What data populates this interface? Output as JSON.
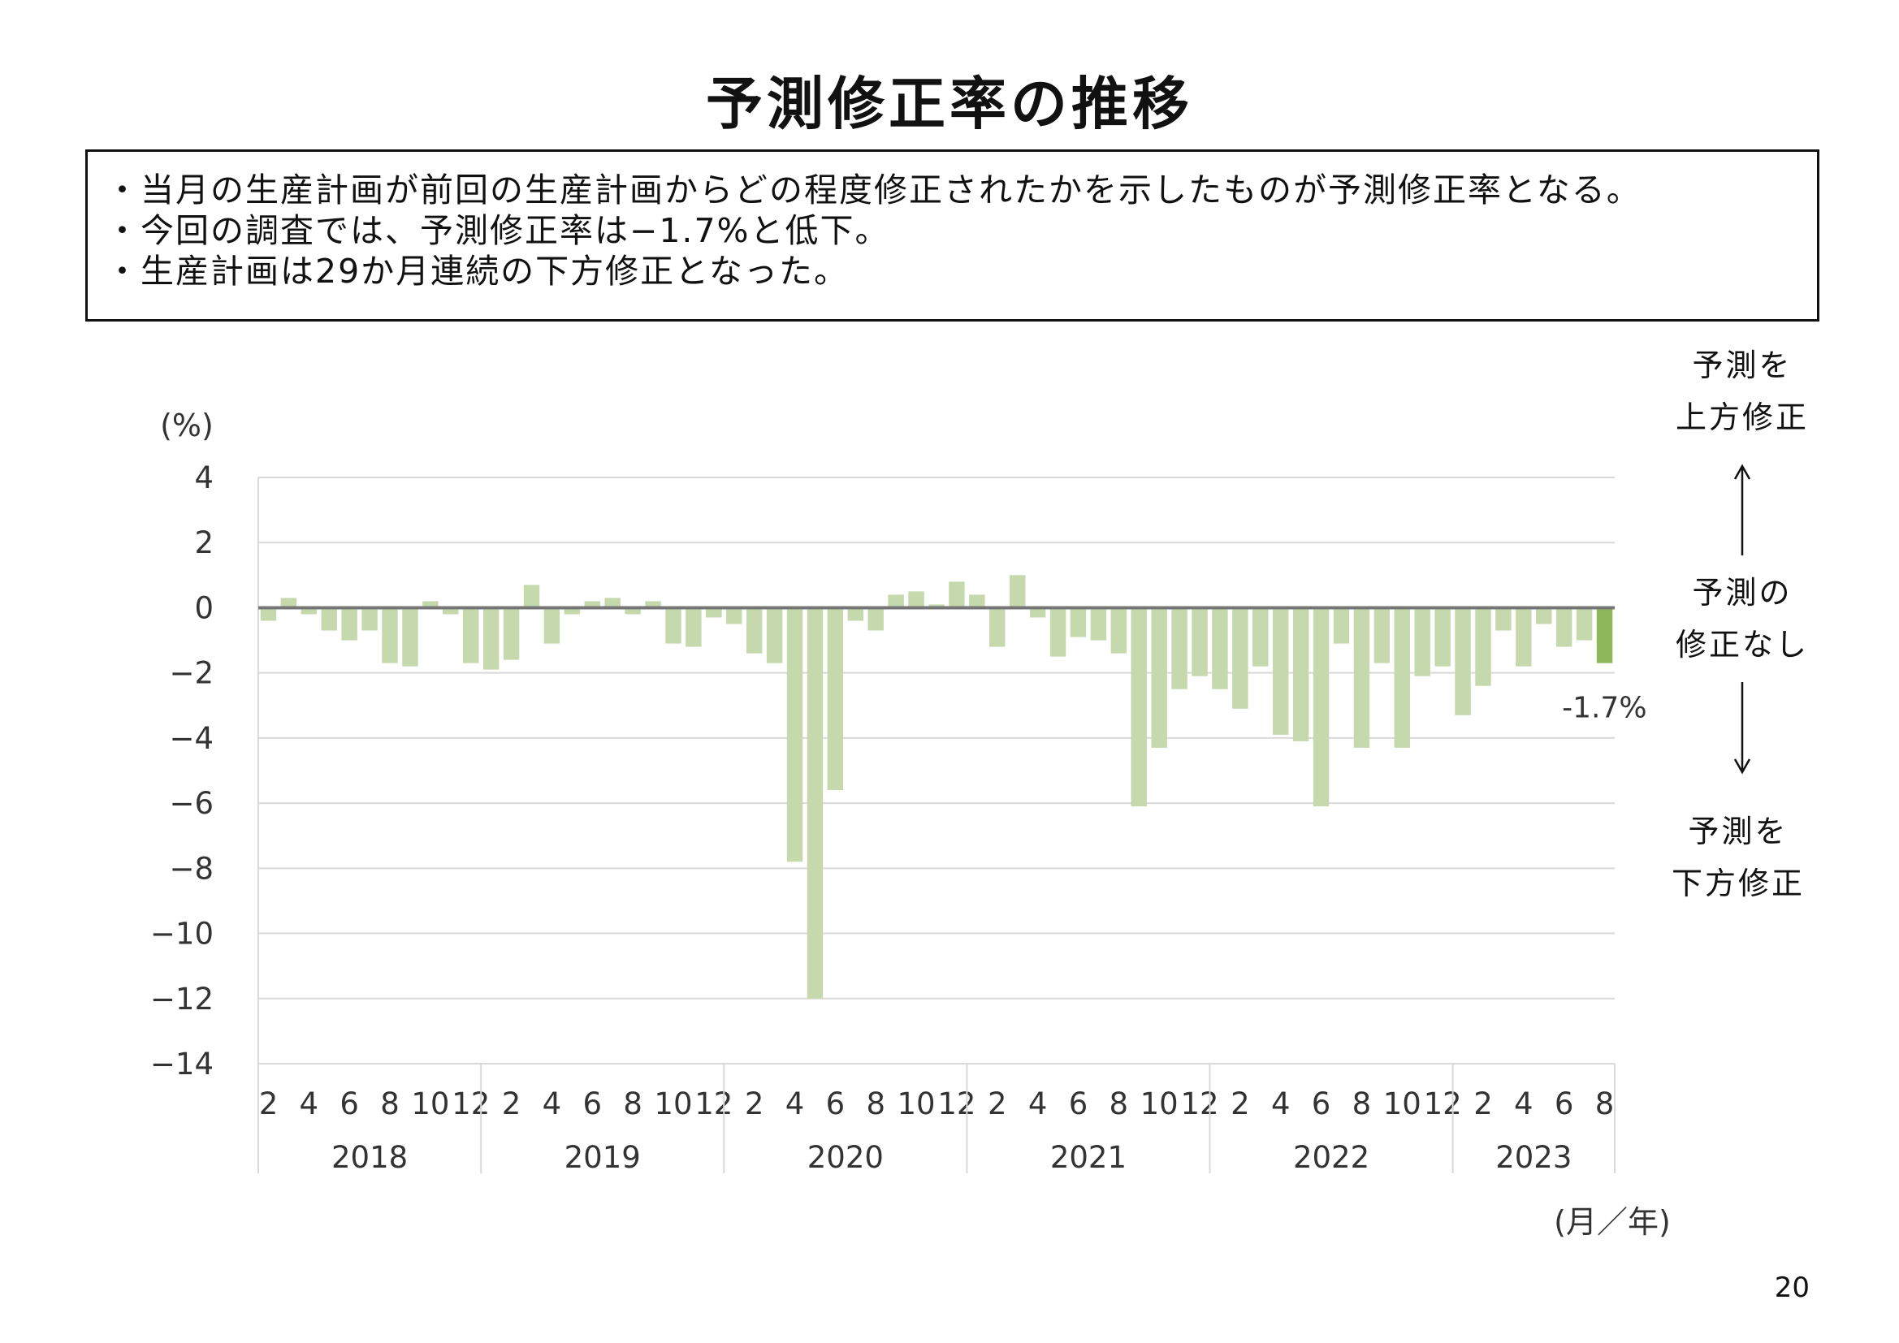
{
  "title": "予測修正率の推移",
  "notes": [
    "・当月の生産計画が前回の生産計画からどの程度修正されたかを示したものが予測修正率となる。",
    "・今回の調査では、予測修正率は−1.7%と低下。",
    "・生産計画は29か月連続の下方修正となった。"
  ],
  "side_labels": {
    "up": [
      "予測を",
      "上方修正"
    ],
    "none": [
      "予測の",
      "修正なし"
    ],
    "down": [
      "予測を",
      "下方修正"
    ],
    "up_arrow": "↑",
    "down_arrow": "↓"
  },
  "page_number": "20",
  "colors": {
    "bar": "#c5d9ad",
    "bar_highlight": "#8db75a",
    "zero_line": "#767676",
    "grid": "#d9d9d9"
  },
  "chart_data": {
    "type": "bar",
    "y_unit_label": "(%)",
    "x_unit_label": "(月／年)",
    "ylim": [
      -14,
      4
    ],
    "y_ticks": [
      "4",
      "2",
      "0",
      "−2",
      "−4",
      "−6",
      "−8",
      "−10",
      "−12",
      "−14"
    ],
    "y_tick_values": [
      4,
      2,
      0,
      -2,
      -4,
      -6,
      -8,
      -10,
      -12,
      -14
    ],
    "grid": true,
    "x_tick_labels": [
      "2",
      "4",
      "6",
      "8",
      "10",
      "12"
    ],
    "years": [
      {
        "label": "2018",
        "months": [
          2,
          3,
          4,
          5,
          6,
          7,
          8,
          9,
          10,
          11,
          12
        ]
      },
      {
        "label": "2019",
        "months": [
          1,
          2,
          3,
          4,
          5,
          6,
          7,
          8,
          9,
          10,
          11,
          12
        ]
      },
      {
        "label": "2020",
        "months": [
          1,
          2,
          3,
          4,
          5,
          6,
          7,
          8,
          9,
          10,
          11,
          12
        ]
      },
      {
        "label": "2021",
        "months": [
          1,
          2,
          3,
          4,
          5,
          6,
          7,
          8,
          9,
          10,
          11,
          12
        ]
      },
      {
        "label": "2022",
        "months": [
          1,
          2,
          3,
          4,
          5,
          6,
          7,
          8,
          9,
          10,
          11,
          12
        ]
      },
      {
        "label": "2023",
        "months": [
          1,
          2,
          3,
          4,
          5,
          6,
          7,
          8
        ]
      }
    ],
    "values": [
      -0.4,
      0.3,
      -0.2,
      -0.7,
      -1.0,
      -0.7,
      -1.7,
      -1.8,
      0.2,
      -0.2,
      -1.7,
      -1.9,
      -1.6,
      0.7,
      -1.1,
      -0.2,
      0.2,
      0.3,
      -0.2,
      0.2,
      -1.1,
      -1.2,
      -0.3,
      -0.5,
      -1.4,
      -1.7,
      -7.8,
      -12.0,
      -5.6,
      -0.4,
      -0.7,
      0.4,
      0.5,
      0.1,
      0.8,
      0.4,
      -1.2,
      1.0,
      -0.3,
      -1.5,
      -0.9,
      -1.0,
      -1.4,
      -6.1,
      -4.3,
      -2.5,
      -2.1,
      -2.5,
      -3.1,
      -1.8,
      -3.9,
      -4.1,
      -6.1,
      -1.1,
      -4.3,
      -1.7,
      -4.3,
      -2.1,
      -1.8,
      -3.3,
      -2.4,
      -0.7,
      -1.8,
      -0.5,
      -1.2,
      -1.0,
      -1.7
    ],
    "highlight_index": 66,
    "highlight_label": "-1.7%"
  }
}
